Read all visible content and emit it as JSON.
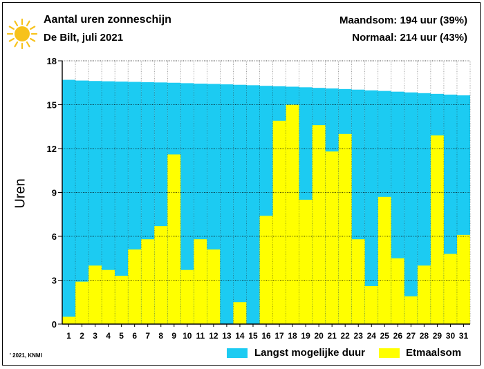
{
  "header": {
    "title": "Aantal uren zonneschijn",
    "subtitle": "De Bilt, juli 2021",
    "month_total": "Maandsom: 194 uur (39%)",
    "normal_total": "Normaal: 214 uur (43%)"
  },
  "footer": {
    "credit": "' 2021, KNMI"
  },
  "colors": {
    "possible": "#1ccbf2",
    "actual": "#ffff00",
    "grid": "#000000",
    "sun": "#f7c21b"
  },
  "chart_data": {
    "type": "bar",
    "ylabel": "Uren",
    "xlabel": "",
    "ylim": [
      0,
      18
    ],
    "yticks": [
      "0",
      "3",
      "6",
      "9",
      "12",
      "15",
      "18"
    ],
    "categories": [
      "1",
      "2",
      "3",
      "4",
      "5",
      "6",
      "7",
      "8",
      "9",
      "10",
      "11",
      "12",
      "13",
      "14",
      "15",
      "16",
      "17",
      "18",
      "19",
      "20",
      "21",
      "22",
      "23",
      "24",
      "25",
      "26",
      "27",
      "28",
      "29",
      "30",
      "31"
    ],
    "grid": true,
    "legend_position": "bottom-right",
    "series": [
      {
        "name": "Langst mogelijke duur",
        "values": [
          16.7,
          16.65,
          16.62,
          16.6,
          16.58,
          16.56,
          16.54,
          16.52,
          16.5,
          16.47,
          16.44,
          16.42,
          16.39,
          16.36,
          16.33,
          16.29,
          16.26,
          16.23,
          16.19,
          16.15,
          16.11,
          16.07,
          16.03,
          15.98,
          15.94,
          15.89,
          15.84,
          15.79,
          15.74,
          15.69,
          15.64
        ]
      },
      {
        "name": "Etmaalsom",
        "values": [
          0.5,
          2.9,
          4.0,
          3.7,
          3.3,
          5.1,
          5.8,
          6.7,
          11.6,
          3.7,
          5.8,
          5.1,
          0.0,
          1.5,
          0.0,
          7.4,
          13.9,
          15.0,
          8.5,
          13.6,
          11.8,
          13.0,
          5.8,
          2.6,
          8.7,
          4.5,
          1.9,
          4.0,
          12.9,
          4.8,
          6.1
        ]
      }
    ]
  }
}
